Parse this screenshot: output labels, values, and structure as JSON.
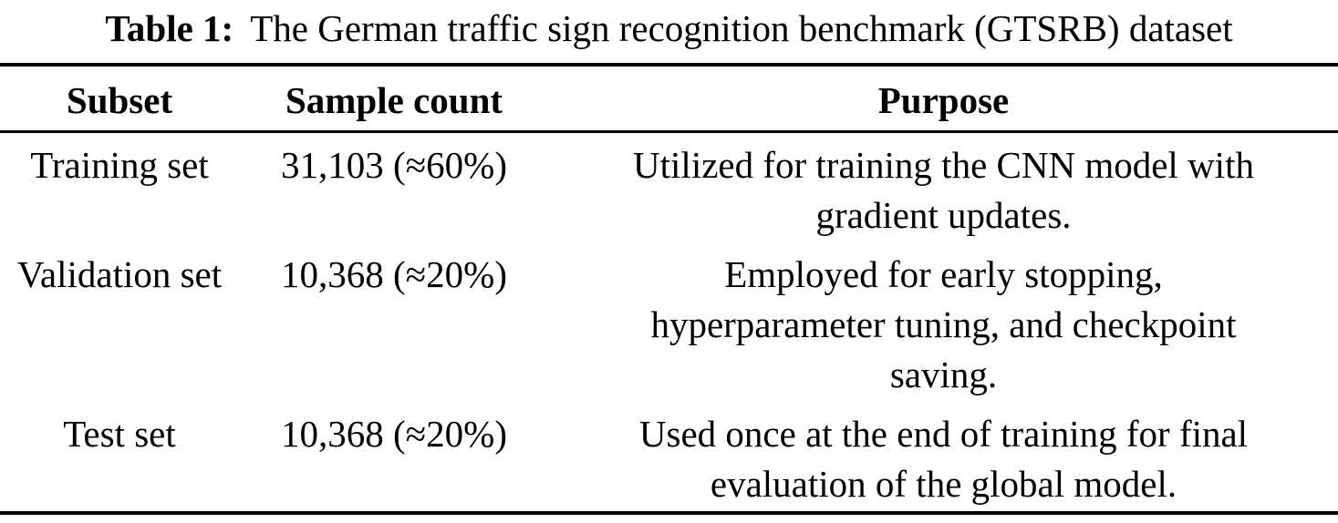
{
  "page": {
    "background_color": "#ffffff",
    "text_color": "#000000",
    "rule_color": "#000000"
  },
  "caption": {
    "label": "Table 1:",
    "text": "The German traffic sign recognition benchmark (GTSRB) dataset"
  },
  "table": {
    "columns": [
      "Subset",
      "Sample count",
      "Purpose"
    ],
    "rows": [
      {
        "subset": "Training set",
        "sample_count": "31,103 (≈60%)",
        "purpose": "Utilized for training the CNN model with\ngradient updates."
      },
      {
        "subset": "Validation set",
        "sample_count": "10,368 (≈20%)",
        "purpose": "Employed for early stopping,\nhyperparameter tuning, and checkpoint\nsaving."
      },
      {
        "subset": "Test set",
        "sample_count": "10,368 (≈20%)",
        "purpose": "Used once at the end of training for final\nevaluation of the global model."
      }
    ]
  }
}
